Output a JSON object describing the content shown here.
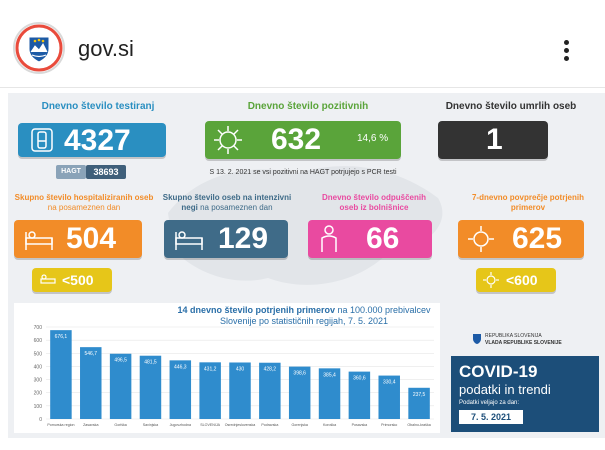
{
  "header": {
    "site_name": "gov.si",
    "icons": {
      "logo": "slovenia-coat-of-arms",
      "menu": "more-vertical-icon"
    }
  },
  "infographic": {
    "tests": {
      "title": "Dnevno število testiranj",
      "value": "4327",
      "hagt_label": "HAGT",
      "hagt_value": "38693",
      "color": "#2a8fc1"
    },
    "positive": {
      "title": "Dnevno število pozitivnih",
      "value": "632",
      "percent": "14,6 %",
      "note": "S 13. 2. 2021 se vsi pozitivni na HAGT potrjujejo s PCR testi",
      "color": "#5aa43a"
    },
    "deaths": {
      "title": "Dnevno število umrlih oseb",
      "value": "1",
      "color": "#333333"
    },
    "hospitalised": {
      "title_bold": "Skupno število hospitaliziranih oseb",
      "title_light": " na posameznen dan",
      "value": "504",
      "badge": "<500",
      "color": "#f28c28"
    },
    "icu": {
      "title_bold": "Skupno število oseb na intenzivni negi",
      "title_light": " na posameznen dan",
      "value": "129",
      "color": "#3f6b88"
    },
    "discharged": {
      "title": "Dnevno število odpuščenih oseb iz bolnišnice",
      "value": "66",
      "color": "#e94aa0"
    },
    "avg7": {
      "title": "7-dnevno povprečje potrjenih primerov",
      "value": "625",
      "badge": "<600",
      "color": "#f28c28"
    },
    "chart_title_bold": "14 dnevno število potrjenih primerov",
    "chart_title_rest": " na 100.000 prebivalcev Slovenije po statističnih regijah, 7. 5. 2021",
    "gov_line1": "REPUBLIKA SLOVENIJA",
    "gov_line2": "VLADA REPUBLIKE SLOVENIJE",
    "covid_title": "COVID-19",
    "covid_sub": "podatki in trendi",
    "covid_valid": "Podatki veljajo za dan:",
    "covid_date": "7. 5. 2021"
  },
  "chart_data": {
    "type": "bar",
    "categories": [
      "Pomurska region",
      "Zasavska",
      "Goriška",
      "Savinjska",
      "Jugovzhodna",
      "SLOVENIJA",
      "Osrednjeslovenska",
      "Podravska",
      "Gorenjska",
      "Koroška",
      "Posavska",
      "Primorsko",
      "Obalno-kraška"
    ],
    "values": [
      676.1,
      546.7,
      496.5,
      481.5,
      446.3,
      431.2,
      430,
      428.2,
      398.6,
      385.4,
      360.6,
      330.4,
      237.5
    ],
    "value_labels": [
      "676,1",
      "546,7",
      "496,5",
      "481,5",
      "446,3",
      "431,2",
      "430",
      "428,2",
      "398,6",
      "385,4",
      "360,6",
      "330,4",
      "237,5"
    ],
    "ylim": [
      0,
      700
    ],
    "yticks": [
      0,
      100,
      200,
      300,
      400,
      500,
      600,
      700
    ],
    "bar_color": "#2f8ccd",
    "title": "",
    "xlabel": "",
    "ylabel": ""
  }
}
